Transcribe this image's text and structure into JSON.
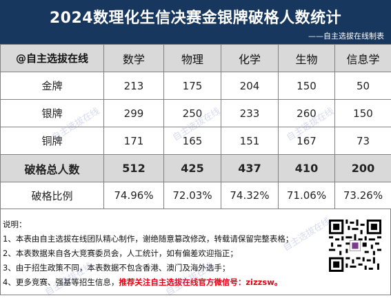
{
  "title": "2024数理化生信决赛金银牌破格人数统计",
  "subtitle": "——自主选拔在线制表",
  "table": {
    "corner": "@自主选拔在线",
    "columns": [
      "数学",
      "物理",
      "化学",
      "生物",
      "信息学"
    ],
    "rows": [
      {
        "label": "金牌",
        "values": [
          "213",
          "175",
          "204",
          "150",
          "50"
        ]
      },
      {
        "label": "银牌",
        "values": [
          "299",
          "250",
          "233",
          "260",
          "150"
        ]
      },
      {
        "label": "铜牌",
        "values": [
          "171",
          "165",
          "151",
          "167",
          "73"
        ]
      }
    ],
    "total": {
      "label": "破格总人数",
      "values": [
        "512",
        "425",
        "437",
        "410",
        "200"
      ]
    },
    "ratio": {
      "label": "破格比例",
      "values": [
        "74.96%",
        "72.03%",
        "74.32%",
        "71.06%",
        "73.26%"
      ]
    }
  },
  "notes": {
    "heading": "说明：",
    "items": [
      "1、本表由自主选拔在线团队精心制作，谢绝随意篡改修改，转载请保留完整表格；",
      "2、本表数据来自各大竞赛委员会，人工统计，如有偏差欢迎指正；",
      "3、由于招生政策不同，本表数据不包含香港、澳门及海外选手；"
    ],
    "item4_prefix": "4、更多竞赛、强基等招生信息，",
    "item4_highlight": "推荐关注自主选拔在线官方微信号：zizzsw。"
  },
  "watermark_text": "自主选拔在线",
  "colors": {
    "title_bg": "#17375e",
    "header_bg": "#d9d9d9",
    "highlight": "#e60012"
  }
}
